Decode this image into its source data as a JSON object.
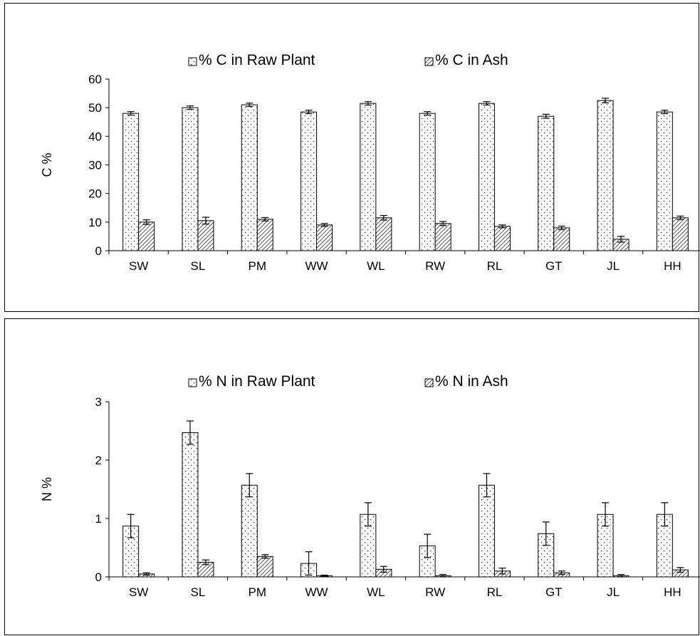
{
  "chart_data": [
    {
      "type": "bar",
      "categories": [
        "SW",
        "SL",
        "PM",
        "WW",
        "WL",
        "RW",
        "RL",
        "GT",
        "JL",
        "HH"
      ],
      "ylabel": "C %",
      "ylim": [
        0,
        60
      ],
      "yticks": [
        "0",
        "10",
        "20",
        "30",
        "40",
        "50",
        "60"
      ],
      "legend_position": "top",
      "series": [
        {
          "name": "% C in Raw Plant",
          "pattern": "dots",
          "values": [
            48.0,
            50.0,
            51.0,
            48.5,
            51.5,
            48.0,
            51.5,
            47.0,
            52.5,
            48.5
          ],
          "errors": [
            0.6,
            0.6,
            0.6,
            0.6,
            0.6,
            0.6,
            0.6,
            0.7,
            0.8,
            0.6
          ]
        },
        {
          "name": "% C in Ash",
          "pattern": "hatch",
          "values": [
            10.0,
            10.5,
            11.0,
            9.0,
            11.5,
            9.5,
            8.5,
            8.0,
            4.0,
            11.5
          ],
          "errors": [
            0.8,
            1.2,
            0.6,
            0.5,
            0.8,
            0.7,
            0.5,
            0.6,
            1.0,
            0.6
          ]
        }
      ]
    },
    {
      "type": "bar",
      "categories": [
        "SW",
        "SL",
        "PM",
        "WW",
        "WL",
        "RW",
        "RL",
        "GT",
        "JL",
        "HH"
      ],
      "ylabel": "N %",
      "ylim": [
        0,
        3
      ],
      "yticks": [
        "0",
        "1",
        "2",
        "3"
      ],
      "legend_position": "top",
      "series": [
        {
          "name": "% N in Raw Plant",
          "pattern": "dots",
          "values": [
            0.87,
            2.47,
            1.57,
            0.23,
            1.07,
            0.53,
            1.57,
            0.74,
            1.07,
            1.07
          ],
          "errors": [
            0.2,
            0.2,
            0.2,
            0.2,
            0.2,
            0.2,
            0.2,
            0.2,
            0.2,
            0.2
          ]
        },
        {
          "name": "% N in Ash",
          "pattern": "hatch",
          "values": [
            0.05,
            0.25,
            0.35,
            0.02,
            0.13,
            0.02,
            0.1,
            0.07,
            0.02,
            0.12
          ],
          "errors": [
            0.02,
            0.04,
            0.03,
            0.01,
            0.05,
            0.02,
            0.05,
            0.03,
            0.02,
            0.04
          ]
        }
      ]
    }
  ]
}
